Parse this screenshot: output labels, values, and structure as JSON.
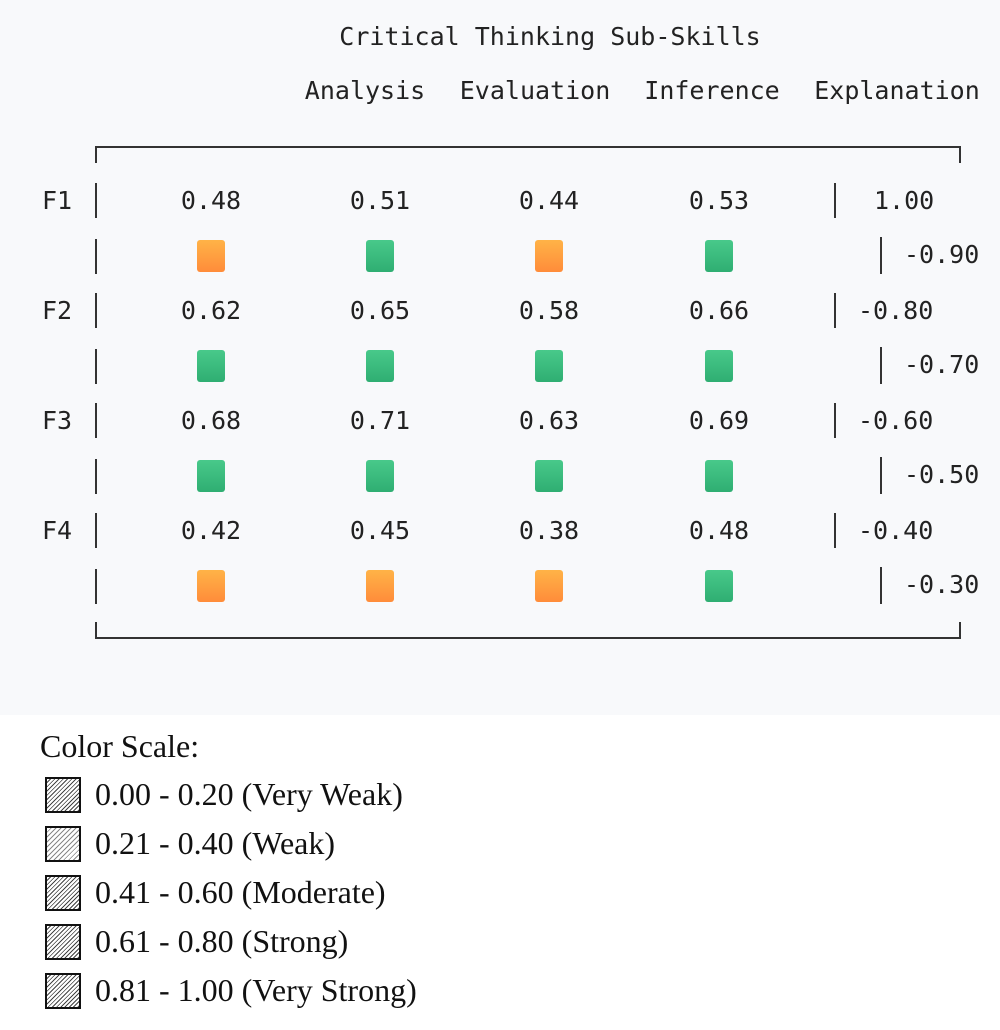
{
  "title": "Critical Thinking Sub-Skills",
  "columns": [
    "Analysis",
    "Evaluation",
    "Inference",
    "Explanation"
  ],
  "rows": [
    {
      "label": "F1",
      "values": [
        "0.48",
        "0.51",
        "0.44",
        "0.53"
      ],
      "colors": [
        "orange",
        "green",
        "orange",
        "green"
      ]
    },
    {
      "label": "F2",
      "values": [
        "0.62",
        "0.65",
        "0.58",
        "0.66"
      ],
      "colors": [
        "green",
        "green",
        "green",
        "green"
      ]
    },
    {
      "label": "F3",
      "values": [
        "0.68",
        "0.71",
        "0.63",
        "0.69"
      ],
      "colors": [
        "green",
        "green",
        "green",
        "green"
      ]
    },
    {
      "label": "F4",
      "values": [
        "0.42",
        "0.45",
        "0.38",
        "0.48"
      ],
      "colors": [
        "orange",
        "orange",
        "orange",
        "green"
      ]
    }
  ],
  "scale_labels": [
    "1.00",
    "-0.90",
    "-0.80",
    "-0.70",
    "-0.60",
    "-0.50",
    "-0.40",
    "-0.30"
  ],
  "color_hex": {
    "orange": "#ff9e40",
    "green": "#3cbd7f"
  },
  "legend": {
    "title": "Color Scale:",
    "items": [
      "0.00 - 0.20 (Very Weak)",
      "0.21 - 0.40 (Weak)",
      "0.41 - 0.60 (Moderate)",
      "0.61 - 0.80 (Strong)",
      "0.81 - 1.00 (Very Strong)"
    ]
  }
}
